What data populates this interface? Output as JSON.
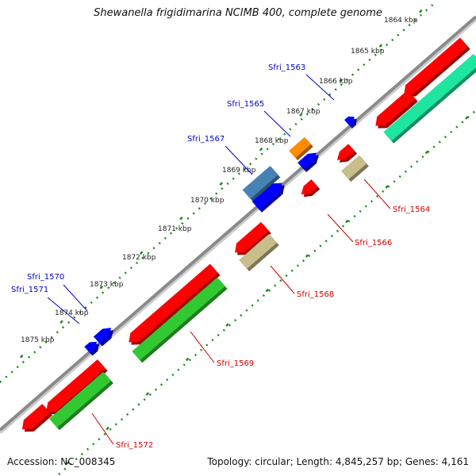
{
  "title": "Shewanella frigidimarina NCIMB 400, complete genome",
  "footer": {
    "accession_label": "Accession:",
    "accession": "NC_008345",
    "topology_label": "Topology:",
    "topology": "circular",
    "length_label": "Length:",
    "length": "4,845,257 bp",
    "genes_label": "Genes:",
    "genes": "4,161"
  },
  "colors": {
    "backbone": "#8a8a8a",
    "ruler": "#1a8a1a",
    "cds": "#ff0000",
    "blast_green": "#32c832",
    "blast_teal": "#1ee6a0",
    "small_feature": "#0000ff",
    "label_forward": "#0000cc",
    "label_reverse": "#cc0000",
    "khaki": "#c8be8c",
    "orange": "#ff8c00",
    "steel": "#4682b4"
  },
  "ruler": {
    "ticks": [
      {
        "label": "1864 kbp"
      },
      {
        "label": "1865 kbp"
      },
      {
        "label": "1866 kbp"
      },
      {
        "label": "1867 kbp"
      },
      {
        "label": "1868 kbp"
      },
      {
        "label": "1869 kbp"
      },
      {
        "label": "1870 kbp"
      },
      {
        "label": "1871 kbp"
      },
      {
        "label": "1872 kbp"
      },
      {
        "label": "1873 kbp"
      },
      {
        "label": "1874 kbp"
      },
      {
        "label": "1875 kbp"
      }
    ]
  },
  "genes": {
    "forward": [
      {
        "label": "Sfri_1563"
      },
      {
        "label": "Sfri_1565"
      },
      {
        "label": "Sfri_1567"
      },
      {
        "label": "Sfri_1570"
      },
      {
        "label": "Sfri_1571"
      }
    ],
    "reverse": [
      {
        "label": "Sfri_1564"
      },
      {
        "label": "Sfri_1566"
      },
      {
        "label": "Sfri_1568"
      },
      {
        "label": "Sfri_1569"
      },
      {
        "label": "Sfri_1572"
      }
    ]
  }
}
